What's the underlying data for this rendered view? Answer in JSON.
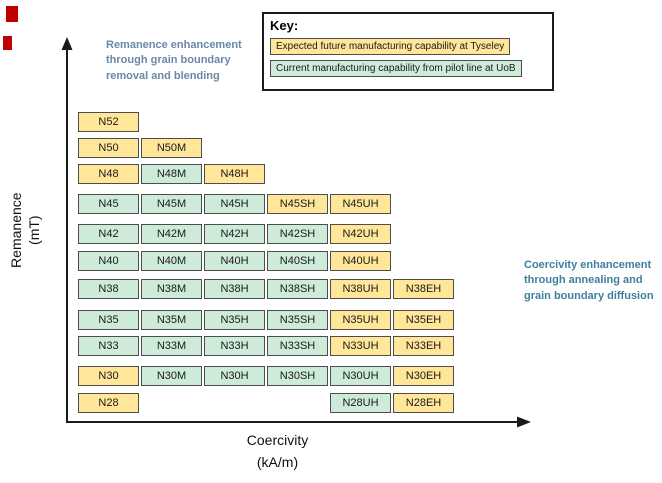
{
  "colors": {
    "future_bg": "#FFE699",
    "current_bg": "#CDEBD8",
    "box_border": "#4D4D4D",
    "annotation_left": "#6B87A6",
    "annotation_right": "#3E7F9E",
    "axis": "#1A1A1A",
    "artifact_red": "#C00000"
  },
  "key": {
    "title": "Key:",
    "items": [
      {
        "label": "Expected future manufacturing capability at Tyseley",
        "type": "future"
      },
      {
        "label": "Current manufacturing capability from pilot line at UoB",
        "type": "current"
      }
    ]
  },
  "annotations": {
    "remanence_note": "Remanence enhancement through grain boundary removal and blending",
    "coercivity_note": "Coercivity enhancement through annealing and grain boundary diffusion"
  },
  "axes": {
    "y_title": "Remanence",
    "y_unit": "(mT)",
    "x_title": "Coercivity",
    "x_unit": "(kA/m)"
  },
  "grid": {
    "suffix_columns": [
      "",
      "M",
      "H",
      "SH",
      "UH",
      "EH"
    ],
    "rows": [
      {
        "base": "N52",
        "cells": [
          {
            "label": "N52",
            "col": 0,
            "type": "future"
          }
        ]
      },
      {
        "base": "N50",
        "cells": [
          {
            "label": "N50",
            "col": 0,
            "type": "future"
          },
          {
            "label": "N50M",
            "col": 1,
            "type": "future"
          }
        ]
      },
      {
        "base": "N48",
        "cells": [
          {
            "label": "N48",
            "col": 0,
            "type": "future"
          },
          {
            "label": "N48M",
            "col": 1,
            "type": "current"
          },
          {
            "label": "N48H",
            "col": 2,
            "type": "future"
          }
        ]
      },
      {
        "base": "N45",
        "cells": [
          {
            "label": "N45",
            "col": 0,
            "type": "current"
          },
          {
            "label": "N45M",
            "col": 1,
            "type": "current"
          },
          {
            "label": "N45H",
            "col": 2,
            "type": "current"
          },
          {
            "label": "N45SH",
            "col": 3,
            "type": "future"
          },
          {
            "label": "N45UH",
            "col": 4,
            "type": "future"
          }
        ]
      },
      {
        "base": "N42",
        "cells": [
          {
            "label": "N42",
            "col": 0,
            "type": "current"
          },
          {
            "label": "N42M",
            "col": 1,
            "type": "current"
          },
          {
            "label": "N42H",
            "col": 2,
            "type": "current"
          },
          {
            "label": "N42SH",
            "col": 3,
            "type": "current"
          },
          {
            "label": "N42UH",
            "col": 4,
            "type": "future"
          }
        ]
      },
      {
        "base": "N40",
        "cells": [
          {
            "label": "N40",
            "col": 0,
            "type": "current"
          },
          {
            "label": "N40M",
            "col": 1,
            "type": "current"
          },
          {
            "label": "N40H",
            "col": 2,
            "type": "current"
          },
          {
            "label": "N40SH",
            "col": 3,
            "type": "current"
          },
          {
            "label": "N40UH",
            "col": 4,
            "type": "future"
          }
        ]
      },
      {
        "base": "N38",
        "cells": [
          {
            "label": "N38",
            "col": 0,
            "type": "current"
          },
          {
            "label": "N38M",
            "col": 1,
            "type": "current"
          },
          {
            "label": "N38H",
            "col": 2,
            "type": "current"
          },
          {
            "label": "N38SH",
            "col": 3,
            "type": "current"
          },
          {
            "label": "N38UH",
            "col": 4,
            "type": "future"
          },
          {
            "label": "N38EH",
            "col": 5,
            "type": "future"
          }
        ]
      },
      {
        "base": "N35",
        "cells": [
          {
            "label": "N35",
            "col": 0,
            "type": "current"
          },
          {
            "label": "N35M",
            "col": 1,
            "type": "current"
          },
          {
            "label": "N35H",
            "col": 2,
            "type": "current"
          },
          {
            "label": "N35SH",
            "col": 3,
            "type": "current"
          },
          {
            "label": "N35UH",
            "col": 4,
            "type": "future"
          },
          {
            "label": "N35EH",
            "col": 5,
            "type": "future"
          }
        ]
      },
      {
        "base": "N33",
        "cells": [
          {
            "label": "N33",
            "col": 0,
            "type": "current"
          },
          {
            "label": "N33M",
            "col": 1,
            "type": "current"
          },
          {
            "label": "N33H",
            "col": 2,
            "type": "current"
          },
          {
            "label": "N33SH",
            "col": 3,
            "type": "current"
          },
          {
            "label": "N33UH",
            "col": 4,
            "type": "future"
          },
          {
            "label": "N33EH",
            "col": 5,
            "type": "future"
          }
        ]
      },
      {
        "base": "N30",
        "cells": [
          {
            "label": "N30",
            "col": 0,
            "type": "future"
          },
          {
            "label": "N30M",
            "col": 1,
            "type": "current"
          },
          {
            "label": "N30H",
            "col": 2,
            "type": "current"
          },
          {
            "label": "N30SH",
            "col": 3,
            "type": "current"
          },
          {
            "label": "N30UH",
            "col": 4,
            "type": "current"
          },
          {
            "label": "N30EH",
            "col": 5,
            "type": "future"
          }
        ]
      },
      {
        "base": "N28",
        "cells": [
          {
            "label": "N28",
            "col": 0,
            "type": "future"
          },
          {
            "label": "N28UH",
            "col": 4,
            "type": "current"
          },
          {
            "label": "N28EH",
            "col": 5,
            "type": "future"
          }
        ]
      }
    ]
  }
}
